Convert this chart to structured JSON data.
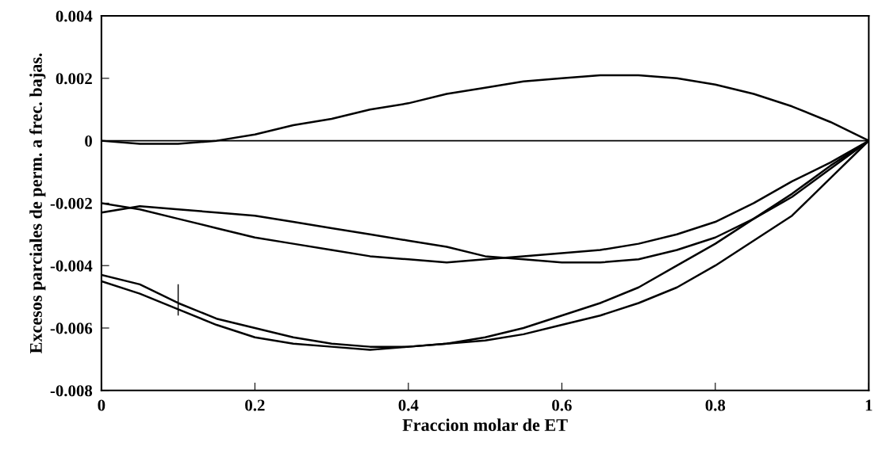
{
  "chart_data": {
    "type": "line",
    "xlabel": "Fraccion molar de ET",
    "ylabel": "Excesos parciales de perm. a frec. bajas.",
    "x": [
      0,
      0.05,
      0.1,
      0.15,
      0.2,
      0.25,
      0.3,
      0.35,
      0.4,
      0.45,
      0.5,
      0.55,
      0.6,
      0.65,
      0.7,
      0.75,
      0.8,
      0.85,
      0.9,
      0.95,
      1
    ],
    "series": [
      {
        "color": "#000000",
        "values": [
          0,
          -0.0001,
          -0.0001,
          0,
          0.0002,
          0.0005,
          0.0007,
          0.001,
          0.0012,
          0.0015,
          0.0017,
          0.0019,
          0.002,
          0.0021,
          0.0021,
          0.002,
          0.0018,
          0.0015,
          0.0011,
          0.0006,
          0
        ]
      },
      {
        "color": "#000000",
        "values": [
          -0.002,
          -0.0022,
          -0.0025,
          -0.0028,
          -0.0031,
          -0.0033,
          -0.0035,
          -0.0037,
          -0.0038,
          -0.0039,
          -0.0038,
          -0.0037,
          -0.0036,
          -0.0035,
          -0.0033,
          -0.003,
          -0.0026,
          -0.002,
          -0.0013,
          -0.0007,
          0
        ]
      },
      {
        "color": "#000000",
        "values": [
          -0.0023,
          -0.0021,
          -0.0022,
          -0.0023,
          -0.0024,
          -0.0026,
          -0.0028,
          -0.003,
          -0.0032,
          -0.0034,
          -0.0037,
          -0.0038,
          -0.0039,
          -0.0039,
          -0.0038,
          -0.0035,
          -0.0031,
          -0.0025,
          -0.0018,
          -0.0009,
          0
        ]
      },
      {
        "color": "#000000",
        "values": [
          -0.0043,
          -0.0046,
          -0.0052,
          -0.0057,
          -0.006,
          -0.0063,
          -0.0065,
          -0.0066,
          -0.0066,
          -0.0065,
          -0.0063,
          -0.006,
          -0.0056,
          -0.0052,
          -0.0047,
          -0.004,
          -0.0033,
          -0.0025,
          -0.0017,
          -0.0008,
          0
        ],
        "errors": [
          null,
          null,
          [
            -0.0056,
            -0.0046
          ],
          null,
          null,
          null,
          null,
          null,
          null,
          null,
          null,
          null,
          null,
          null,
          null,
          null,
          null,
          null,
          null,
          null,
          null
        ]
      },
      {
        "color": "#000000",
        "values": [
          -0.0045,
          -0.0049,
          -0.0054,
          -0.0059,
          -0.0063,
          -0.0065,
          -0.0066,
          -0.0067,
          -0.0066,
          -0.0065,
          -0.0064,
          -0.0062,
          -0.0059,
          -0.0056,
          -0.0052,
          -0.0047,
          -0.004,
          -0.0032,
          -0.0024,
          -0.0012,
          0
        ]
      }
    ],
    "xlim": [
      0,
      1
    ],
    "xticks": [
      0,
      0.2,
      0.4,
      0.6,
      0.8,
      1
    ],
    "ylim": [
      -0.008,
      0.004
    ],
    "yticks": [
      -0.008,
      -0.006,
      -0.004,
      -0.002,
      0,
      0.002,
      0.004
    ],
    "ref_lines": [
      {
        "axis": "y",
        "value": 0,
        "color": "#000000"
      }
    ],
    "grid": false,
    "marker": "none",
    "line_style": "solid"
  }
}
